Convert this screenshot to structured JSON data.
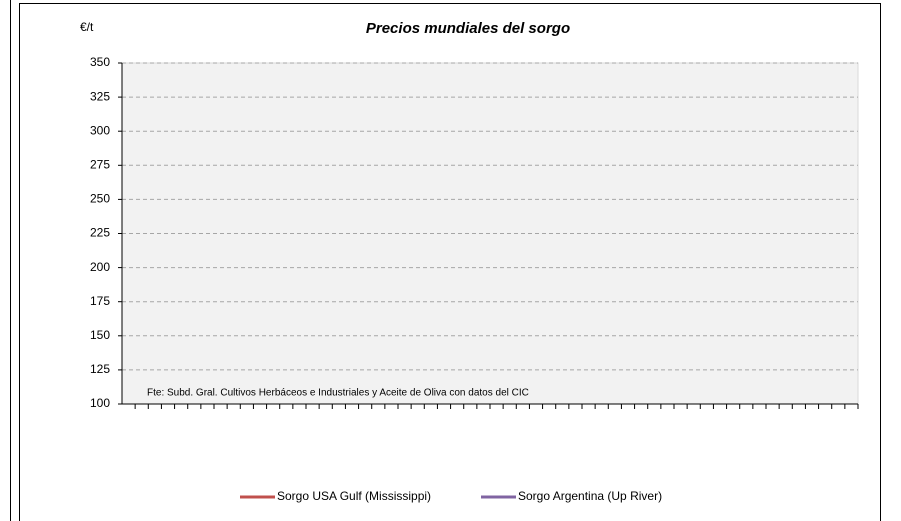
{
  "chart_data": {
    "type": "line",
    "title": "Precios mundiales del sorgo",
    "y_label": "€/t",
    "annotation": "Fte: Subd. Gral. Cultivos Herbáceos e Industriales y Aceite de Oliva con datos del CIC",
    "categories": [
      null,
      null,
      null,
      null,
      null,
      null,
      null,
      null,
      null,
      null,
      null,
      null,
      null,
      null,
      null,
      null,
      null,
      null,
      null,
      null,
      null,
      null,
      null,
      null,
      null,
      null,
      null,
      null,
      null,
      null,
      null,
      null,
      null,
      null,
      null,
      null,
      null,
      null,
      null,
      null,
      null,
      null,
      null,
      null,
      null,
      null,
      null,
      null,
      null,
      null,
      null,
      null,
      null,
      null,
      null,
      null
    ],
    "series": [
      {
        "name": "Sorgo USA Gulf (Mississippi)",
        "color": "#c0504d",
        "values": [
          null,
          null,
          null,
          null,
          null,
          null,
          null,
          null,
          null,
          null,
          null,
          null,
          null,
          null,
          null,
          null,
          null,
          null,
          null,
          null,
          null,
          null,
          null,
          null,
          null,
          null,
          null,
          null,
          null,
          null,
          null,
          null,
          null,
          null,
          null,
          null,
          null,
          null,
          null,
          null,
          null,
          null,
          null,
          null,
          null,
          null,
          null,
          null,
          null,
          null,
          null,
          null,
          null,
          null,
          null,
          null
        ]
      },
      {
        "name": "Sorgo Argentina (Up River)",
        "color": "#8064a2",
        "values": [
          null,
          null,
          null,
          null,
          null,
          null,
          null,
          null,
          null,
          null,
          null,
          null,
          null,
          null,
          null,
          null,
          null,
          null,
          null,
          null,
          null,
          null,
          null,
          null,
          null,
          null,
          null,
          null,
          null,
          null,
          null,
          null,
          null,
          null,
          null,
          null,
          null,
          null,
          null,
          null,
          null,
          null,
          null,
          null,
          null,
          null,
          null,
          null,
          null,
          null,
          null,
          null,
          null,
          null,
          null,
          null
        ]
      }
    ],
    "ylim": [
      100,
      350
    ],
    "yticks": [
      100,
      125,
      150,
      175,
      200,
      225,
      250,
      275,
      300,
      325,
      350
    ],
    "grid": true,
    "legend": "bottom"
  }
}
